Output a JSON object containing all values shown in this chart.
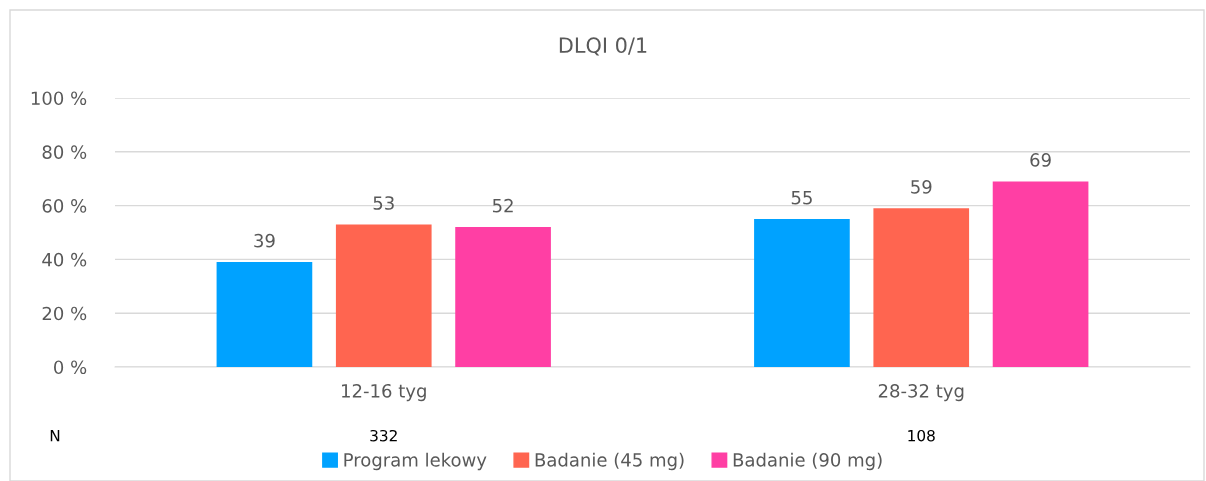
{
  "chart_data": {
    "type": "bar",
    "title": "DLQI 0/1",
    "categories": [
      "12-16 tyg",
      "28-32 tyg"
    ],
    "series": [
      {
        "name": "Program lekowy",
        "color": "#00a2ff",
        "values": [
          39,
          55
        ]
      },
      {
        "name": "Badanie (45 mg)",
        "color": "#ff6550",
        "values": [
          53,
          59
        ]
      },
      {
        "name": "Badanie (90 mg)",
        "color": "#ff3fa4",
        "values": [
          52,
          69
        ]
      }
    ],
    "ylim": [
      0,
      100
    ],
    "yticks": [
      {
        "value": 0,
        "label": "0 %"
      },
      {
        "value": 20,
        "label": "20 %"
      },
      {
        "value": 40,
        "label": "40 %"
      },
      {
        "value": 60,
        "label": "60 %"
      },
      {
        "value": 80,
        "label": "80 %"
      },
      {
        "value": 100,
        "label": "100 %"
      }
    ],
    "grid": "y",
    "data_labels": true,
    "legend": "bottom",
    "annotations": [
      "N",
      "332",
      "108"
    ]
  }
}
